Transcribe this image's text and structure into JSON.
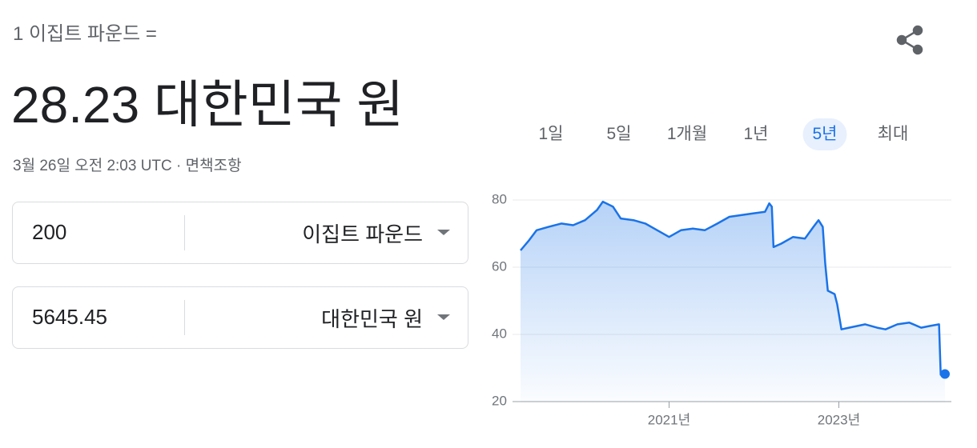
{
  "header": {
    "label": "1 이집트 파운드 =",
    "result": "28.23 대한민국 원",
    "timestamp": "3월 26일 오전 2:03 UTC",
    "separator": "·",
    "disclaimer": "면책조항"
  },
  "converter": {
    "rows": [
      {
        "amount": "200",
        "currency": "이집트 파운드"
      },
      {
        "amount": "5645.45",
        "currency": "대한민국 원"
      }
    ]
  },
  "tabs": {
    "items": [
      "1일",
      "5일",
      "1개월",
      "1년",
      "5년",
      "최대"
    ],
    "selected": "5년"
  },
  "chart_data": {
    "type": "line",
    "color": "#1a73e8",
    "grid": true,
    "x": [
      2019.25,
      2019.35,
      2019.44,
      2019.58,
      2019.73,
      2019.87,
      2020.01,
      2020.15,
      2020.22,
      2020.34,
      2020.43,
      2020.58,
      2020.72,
      2020.86,
      2021.0,
      2021.14,
      2021.28,
      2021.42,
      2021.57,
      2021.71,
      2021.85,
      2021.99,
      2022.13,
      2022.18,
      2022.21,
      2022.23,
      2022.32,
      2022.46,
      2022.6,
      2022.7,
      2022.76,
      2022.81,
      2022.84,
      2022.87,
      2022.95,
      2022.98,
      2023.03,
      2023.12,
      2023.31,
      2023.45,
      2023.55,
      2023.69,
      2023.83,
      2023.97,
      2024.07,
      2024.18,
      2024.2,
      2024.25
    ],
    "values": [
      65,
      68,
      71,
      72,
      73,
      72.5,
      74,
      77,
      79.5,
      78,
      74.5,
      74,
      73,
      71,
      69,
      71,
      71.5,
      71,
      73,
      75,
      75.5,
      76,
      76.5,
      79,
      78,
      66,
      67,
      69,
      68.5,
      72,
      74,
      72,
      61,
      53,
      52,
      49,
      41.5,
      42,
      43,
      42,
      41.5,
      43,
      43.5,
      42,
      42.5,
      43,
      28,
      28.2
    ],
    "xlim": [
      2019.25,
      2024.25
    ],
    "xticks": [
      {
        "value": 2021,
        "label": "2021년"
      },
      {
        "value": 2023,
        "label": "2023년"
      }
    ],
    "ylim": [
      20,
      80
    ],
    "yticks": [
      20,
      40,
      60,
      80
    ]
  }
}
